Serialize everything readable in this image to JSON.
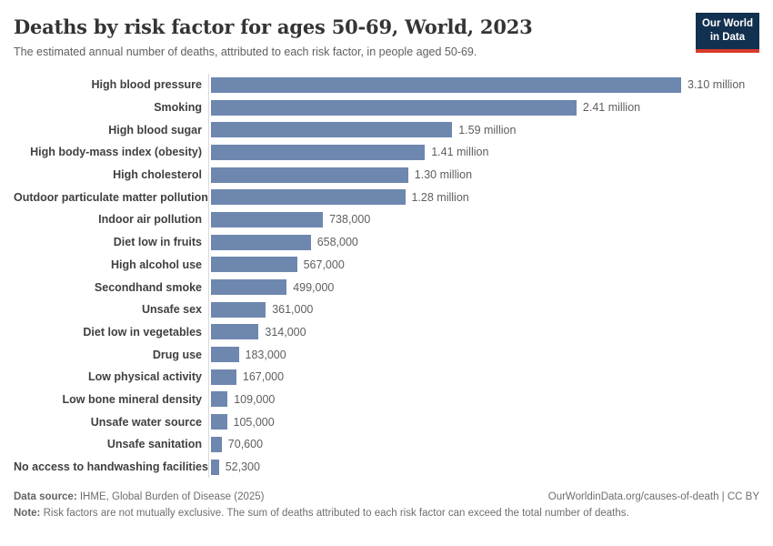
{
  "header": {
    "title": "Deaths by risk factor for ages 50-69, World, 2023",
    "subtitle": "The estimated annual number of deaths, attributed to each risk factor, in people aged 50-69.",
    "logo": {
      "line1": "Our World",
      "line2": "in Data"
    }
  },
  "chart_data": {
    "type": "bar",
    "orientation": "horizontal",
    "title": "Deaths by risk factor for ages 50-69, World, 2023",
    "xlabel": "",
    "ylabel": "",
    "xlim": [
      0,
      3100000
    ],
    "grid": false,
    "legend": false,
    "bar_color": "#6e87af",
    "categories": [
      "High blood pressure",
      "Smoking",
      "High blood sugar",
      "High body-mass index (obesity)",
      "High cholesterol",
      "Outdoor particulate matter pollution",
      "Indoor air pollution",
      "Diet low in fruits",
      "High alcohol use",
      "Secondhand smoke",
      "Unsafe sex",
      "Diet low in vegetables",
      "Drug use",
      "Low physical activity",
      "Low bone mineral density",
      "Unsafe water source",
      "Unsafe sanitation",
      "No access to handwashing facilities"
    ],
    "values": [
      3100000,
      2410000,
      1590000,
      1410000,
      1300000,
      1280000,
      738000,
      658000,
      567000,
      499000,
      361000,
      314000,
      183000,
      167000,
      109000,
      105000,
      70600,
      52300
    ],
    "value_labels": [
      "3.10 million",
      "2.41 million",
      "1.59 million",
      "1.41 million",
      "1.30 million",
      "1.28 million",
      "738,000",
      "658,000",
      "567,000",
      "499,000",
      "361,000",
      "314,000",
      "183,000",
      "167,000",
      "109,000",
      "105,000",
      "70,600",
      "52,300"
    ]
  },
  "footer": {
    "datasource_label": "Data source:",
    "datasource_text": " IHME, Global Burden of Disease (2025)",
    "attribution": "OurWorldinData.org/causes-of-death | CC BY",
    "note_label": "Note:",
    "note_text": " Risk factors are not mutually exclusive. The sum of deaths attributed to each risk factor can exceed the total number of deaths."
  },
  "colors": {
    "bar": "#6e87af",
    "axis_line": "#d9d9d9",
    "title_text": "#343434",
    "subtitle_text": "#5f5f5f",
    "category_label": "#404040",
    "value_label": "#5e5e5e",
    "footer_text": "#6e6e6e",
    "logo_background": "#12304f",
    "logo_accent": "#d93a2b"
  }
}
